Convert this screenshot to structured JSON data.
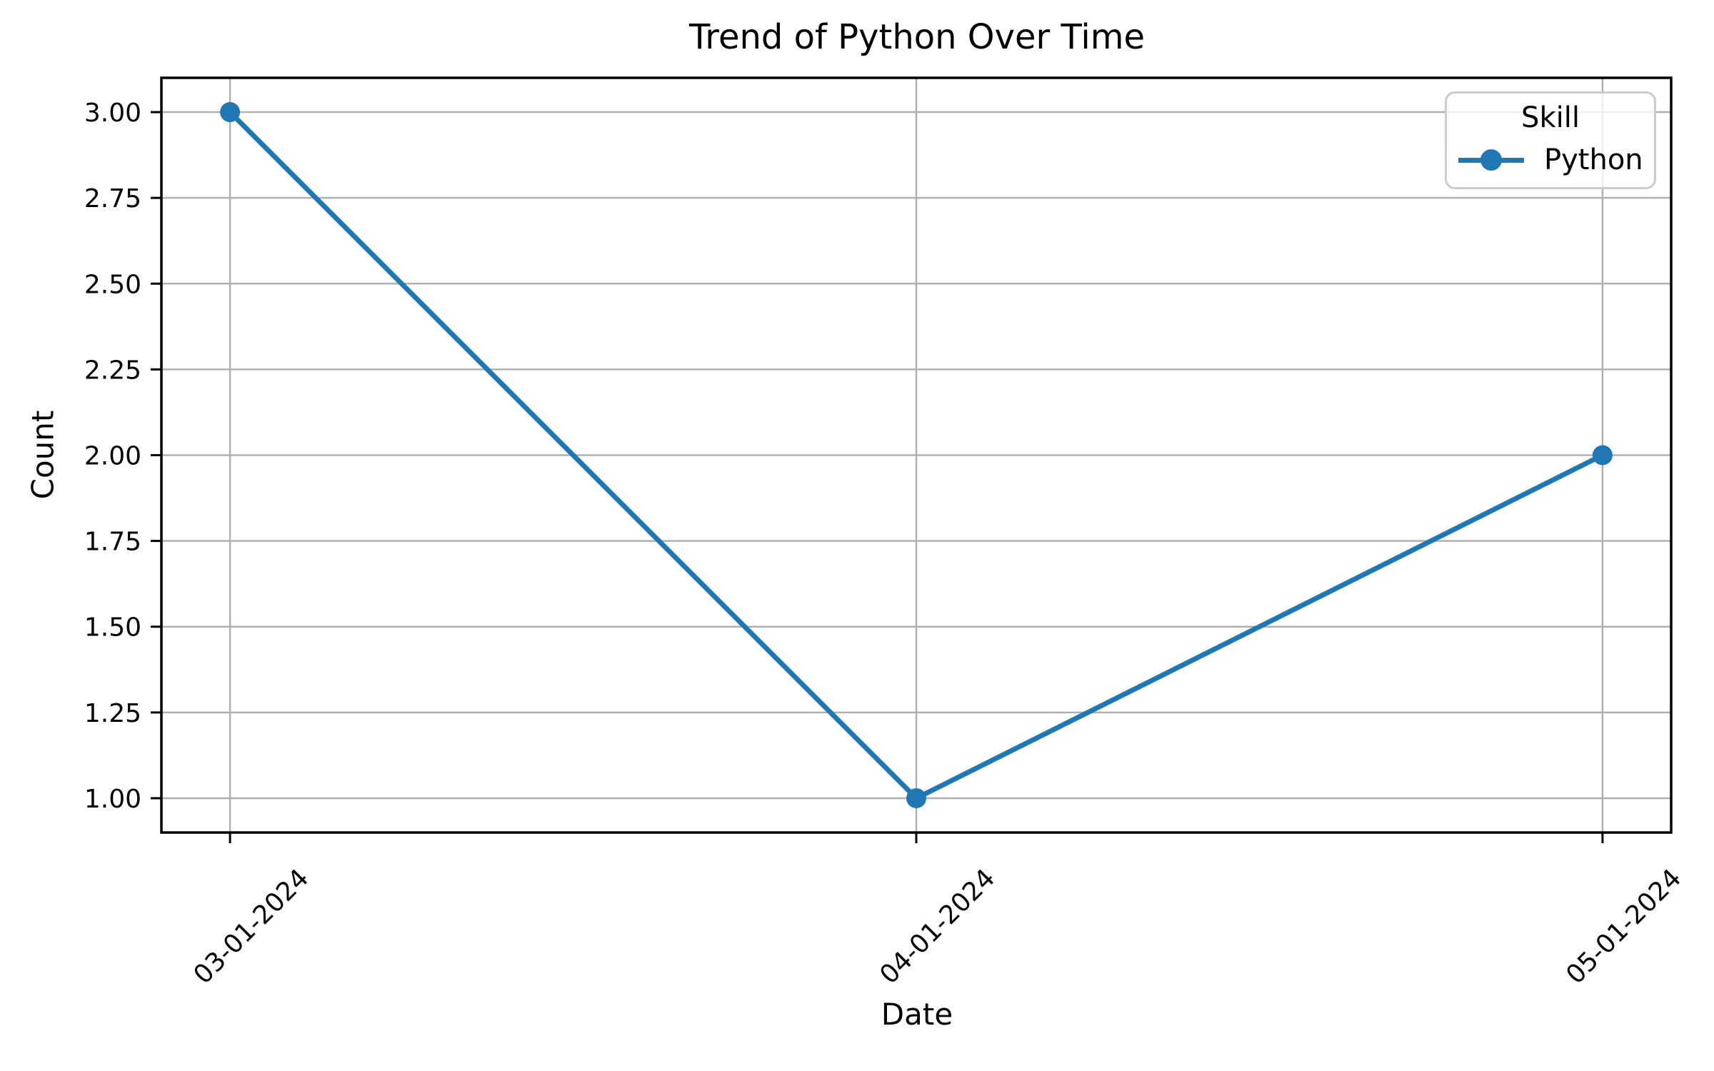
{
  "chart_data": {
    "type": "line",
    "title": "Trend of Python Over Time",
    "xlabel": "Date",
    "ylabel": "Count",
    "categories": [
      "03-01-2024",
      "04-01-2024",
      "05-01-2024"
    ],
    "series": [
      {
        "name": "Python",
        "values": [
          3.0,
          1.0,
          2.0
        ],
        "color": "#1f77b4",
        "marker": "circle"
      }
    ],
    "xlim": [
      -0.1,
      2.1
    ],
    "ylim": [
      0.9,
      3.1
    ],
    "yticks": [
      1.0,
      1.25,
      1.5,
      1.75,
      2.0,
      2.25,
      2.5,
      2.75,
      3.0
    ],
    "ytick_labels": [
      "1.00",
      "1.25",
      "1.50",
      "1.75",
      "2.00",
      "2.25",
      "2.50",
      "2.75",
      "3.00"
    ],
    "xtick_rotation_deg": 45,
    "grid": true,
    "legend": {
      "title": "Skill",
      "position": "upper-right",
      "entries": [
        "Python"
      ]
    },
    "colors": {
      "line": "#1f77b4",
      "grid": "#b0b0b0",
      "axis": "#000000",
      "legend_border": "#cccccc",
      "background": "#ffffff"
    }
  }
}
